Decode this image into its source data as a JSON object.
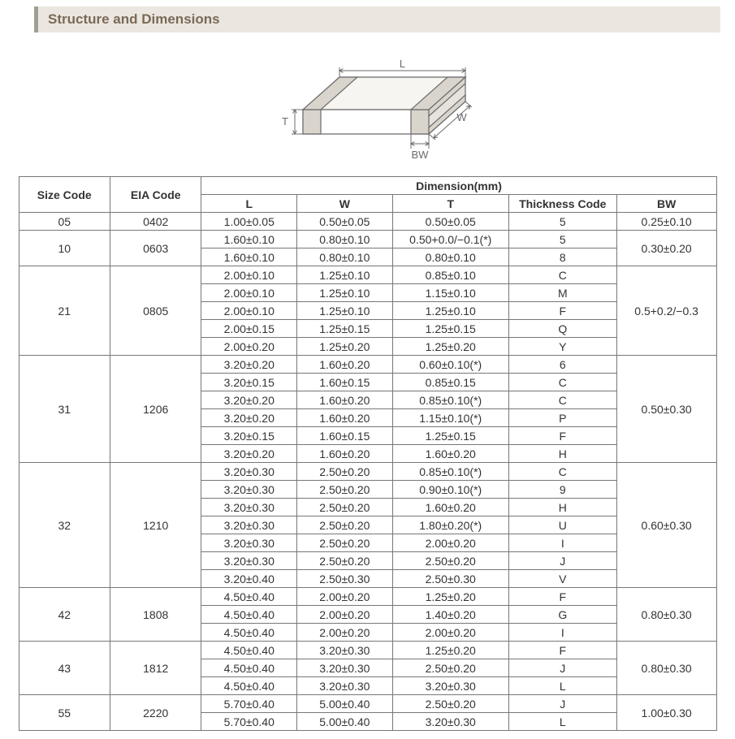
{
  "section_title": "Structure and Dimensions",
  "diagram": {
    "labels": {
      "L": "L",
      "W": "W",
      "T": "T",
      "BW": "BW"
    },
    "stroke": "#6b6b6b",
    "fill_top": "#f6f5f2",
    "fill_front": "#ffffff",
    "fill_side": "#e6e3dc",
    "fill_term": "#d9d5cc"
  },
  "table": {
    "header_group": "Dimension(mm)",
    "columns": {
      "size": "Size Code",
      "eia": "EIA Code",
      "L": "L",
      "W": "W",
      "T": "T",
      "tc": "Thickness  Code",
      "bw": "BW"
    },
    "groups": [
      {
        "size": "05",
        "eia": "0402",
        "bw": "0.25±0.10",
        "rows": [
          {
            "L": "1.00±0.05",
            "W": "0.50±0.05",
            "T": "0.50±0.05",
            "tc": "5"
          }
        ]
      },
      {
        "size": "10",
        "eia": "0603",
        "bw": "0.30±0.20",
        "rows": [
          {
            "L": "1.60±0.10",
            "W": "0.80±0.10",
            "T": "0.50+0.0/−0.1(*)",
            "tc": "5"
          },
          {
            "L": "1.60±0.10",
            "W": "0.80±0.10",
            "T": "0.80±0.10",
            "tc": "8"
          }
        ]
      },
      {
        "size": "21",
        "eia": "0805",
        "bw": "0.5+0.2/−0.3",
        "rows": [
          {
            "L": "2.00±0.10",
            "W": "1.25±0.10",
            "T": "0.85±0.10",
            "tc": "C"
          },
          {
            "L": "2.00±0.10",
            "W": "1.25±0.10",
            "T": "1.15±0.10",
            "tc": "M"
          },
          {
            "L": "2.00±0.10",
            "W": "1.25±0.10",
            "T": "1.25±0.10",
            "tc": "F"
          },
          {
            "L": "2.00±0.15",
            "W": "1.25±0.15",
            "T": "1.25±0.15",
            "tc": "Q"
          },
          {
            "L": "2.00±0.20",
            "W": "1.25±0.20",
            "T": "1.25±0.20",
            "tc": "Y"
          }
        ]
      },
      {
        "size": "31",
        "eia": "1206",
        "bw": "0.50±0.30",
        "rows": [
          {
            "L": "3.20±0.20",
            "W": "1.60±0.20",
            "T": "0.60±0.10(*)",
            "tc": "6"
          },
          {
            "L": "3.20±0.15",
            "W": "1.60±0.15",
            "T": "0.85±0.15",
            "tc": "C"
          },
          {
            "L": "3.20±0.20",
            "W": "1.60±0.20",
            "T": "0.85±0.10(*)",
            "tc": "C"
          },
          {
            "L": "3.20±0.20",
            "W": "1.60±0.20",
            "T": "1.15±0.10(*)",
            "tc": "P"
          },
          {
            "L": "3.20±0.15",
            "W": "1.60±0.15",
            "T": "1.25±0.15",
            "tc": "F"
          },
          {
            "L": "3.20±0.20",
            "W": "1.60±0.20",
            "T": "1.60±0.20",
            "tc": "H"
          }
        ]
      },
      {
        "size": "32",
        "eia": "1210",
        "bw": "0.60±0.30",
        "rows": [
          {
            "L": "3.20±0.30",
            "W": "2.50±0.20",
            "T": "0.85±0.10(*)",
            "tc": "C"
          },
          {
            "L": "3.20±0.30",
            "W": "2.50±0.20",
            "T": "0.90±0.10(*)",
            "tc": "9"
          },
          {
            "L": "3.20±0.30",
            "W": "2.50±0.20",
            "T": "1.60±0.20",
            "tc": "H"
          },
          {
            "L": "3.20±0.30",
            "W": "2.50±0.20",
            "T": "1.80±0.20(*)",
            "tc": "U"
          },
          {
            "L": "3.20±0.30",
            "W": "2.50±0.20",
            "T": "2.00±0.20",
            "tc": "I"
          },
          {
            "L": "3.20±0.30",
            "W": "2.50±0.20",
            "T": "2.50±0.20",
            "tc": "J"
          },
          {
            "L": "3.20±0.40",
            "W": "2.50±0.30",
            "T": "2.50±0.30",
            "tc": "V"
          }
        ]
      },
      {
        "size": "42",
        "eia": "1808",
        "bw": "0.80±0.30",
        "rows": [
          {
            "L": "4.50±0.40",
            "W": "2.00±0.20",
            "T": "1.25±0.20",
            "tc": "F"
          },
          {
            "L": "4.50±0.40",
            "W": "2.00±0.20",
            "T": "1.40±0.20",
            "tc": "G"
          },
          {
            "L": "4.50±0.40",
            "W": "2.00±0.20",
            "T": "2.00±0.20",
            "tc": "I"
          }
        ]
      },
      {
        "size": "43",
        "eia": "1812",
        "bw": "0.80±0.30",
        "rows": [
          {
            "L": "4.50±0.40",
            "W": "3.20±0.30",
            "T": "1.25±0.20",
            "tc": "F"
          },
          {
            "L": "4.50±0.40",
            "W": "3.20±0.30",
            "T": "2.50±0.20",
            "tc": "J"
          },
          {
            "L": "4.50±0.40",
            "W": "3.20±0.30",
            "T": "3.20±0.30",
            "tc": "L"
          }
        ]
      },
      {
        "size": "55",
        "eia": "2220",
        "bw": "1.00±0.30",
        "rows": [
          {
            "L": "5.70±0.40",
            "W": "5.00±0.40",
            "T": "2.50±0.20",
            "tc": "J"
          },
          {
            "L": "5.70±0.40",
            "W": "5.00±0.40",
            "T": "3.20±0.30",
            "tc": "L"
          }
        ]
      }
    ]
  }
}
